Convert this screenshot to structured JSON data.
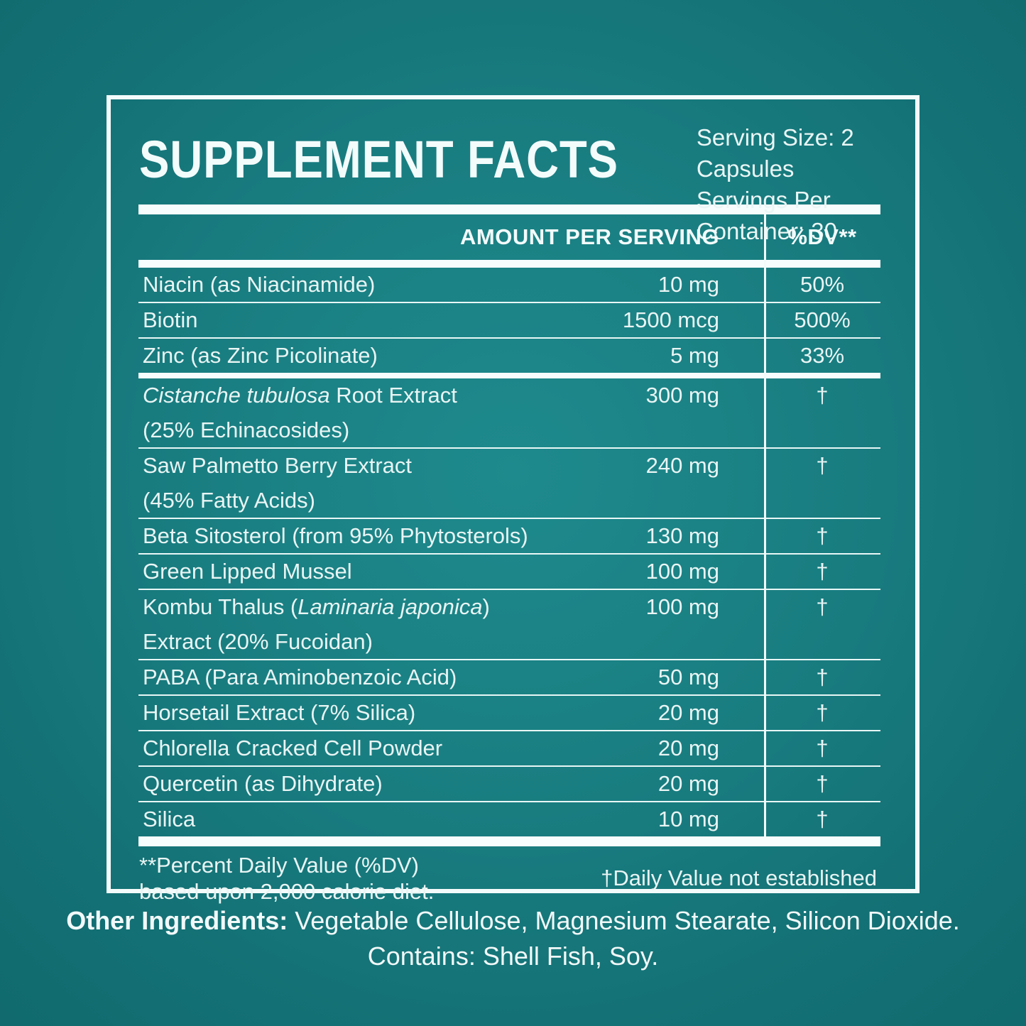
{
  "header": {
    "title": "SUPPLEMENT FACTS",
    "serving_size": "Serving Size: 2 Capsules",
    "servings_per_container": "Servings Per Container: 30"
  },
  "table": {
    "amount_header": "AMOUNT PER SERVING",
    "dv_header": "%DV**",
    "rows": [
      {
        "pre": "Niacin (as Niacinamide)",
        "italic": "",
        "post": "",
        "line2": "",
        "amount": "10 mg",
        "dv": "50%"
      },
      {
        "pre": "Biotin",
        "italic": "",
        "post": "",
        "line2": "",
        "amount": "1500 mcg",
        "dv": "500%"
      },
      {
        "pre": "Zinc (as Zinc Picolinate)",
        "italic": "",
        "post": "",
        "line2": "",
        "amount": "5 mg",
        "dv": "33%"
      },
      {
        "pre": "",
        "italic": "Cistanche tubulosa",
        "post": " Root Extract",
        "line2": "(25% Echinacosides)",
        "amount": "300 mg",
        "dv": "†"
      },
      {
        "pre": "Saw Palmetto Berry Extract",
        "italic": "",
        "post": "",
        "line2": "(45% Fatty Acids)",
        "amount": "240 mg",
        "dv": "†"
      },
      {
        "pre": "Beta Sitosterol (from 95% Phytosterols)",
        "italic": "",
        "post": "",
        "line2": "",
        "amount": "130 mg",
        "dv": "†"
      },
      {
        "pre": "Green Lipped Mussel",
        "italic": "",
        "post": "",
        "line2": "",
        "amount": "100 mg",
        "dv": "†"
      },
      {
        "pre": "Kombu Thalus (",
        "italic": "Laminaria japonica",
        "post": ")",
        "line2": "Extract (20% Fucoidan)",
        "amount": "100 mg",
        "dv": "†"
      },
      {
        "pre": "PABA (Para Aminobenzoic Acid)",
        "italic": "",
        "post": "",
        "line2": "",
        "amount": "50 mg",
        "dv": "†"
      },
      {
        "pre": "Horsetail Extract (7% Silica)",
        "italic": "",
        "post": "",
        "line2": "",
        "amount": "20 mg",
        "dv": "†"
      },
      {
        "pre": "Chlorella Cracked Cell Powder",
        "italic": "",
        "post": "",
        "line2": "",
        "amount": "20 mg",
        "dv": "†"
      },
      {
        "pre": "Quercetin (as Dihydrate)",
        "italic": "",
        "post": "",
        "line2": "",
        "amount": "20 mg",
        "dv": "†"
      },
      {
        "pre": "Silica",
        "italic": "",
        "post": "",
        "line2": "",
        "amount": "10 mg",
        "dv": "†"
      }
    ]
  },
  "footnotes": {
    "percent_dv_line1": "**Percent Daily Value (%DV)",
    "percent_dv_line2": "based upon 2,000 calorie diet.",
    "daily_value_note": "†Daily Value not established"
  },
  "other_ingredients": {
    "label": "Other Ingredients:",
    "text": "Vegetable Cellulose, Magnesium Stearate, Silicon Dioxide.",
    "contains": "Contains: Shell Fish, Soy."
  },
  "colors": {
    "background_center": "#1e8a8d",
    "background_edge": "#106a6e",
    "panel_border": "#f4fbfb",
    "rule": "#e8f7f6",
    "text": "#e9f5f4"
  }
}
